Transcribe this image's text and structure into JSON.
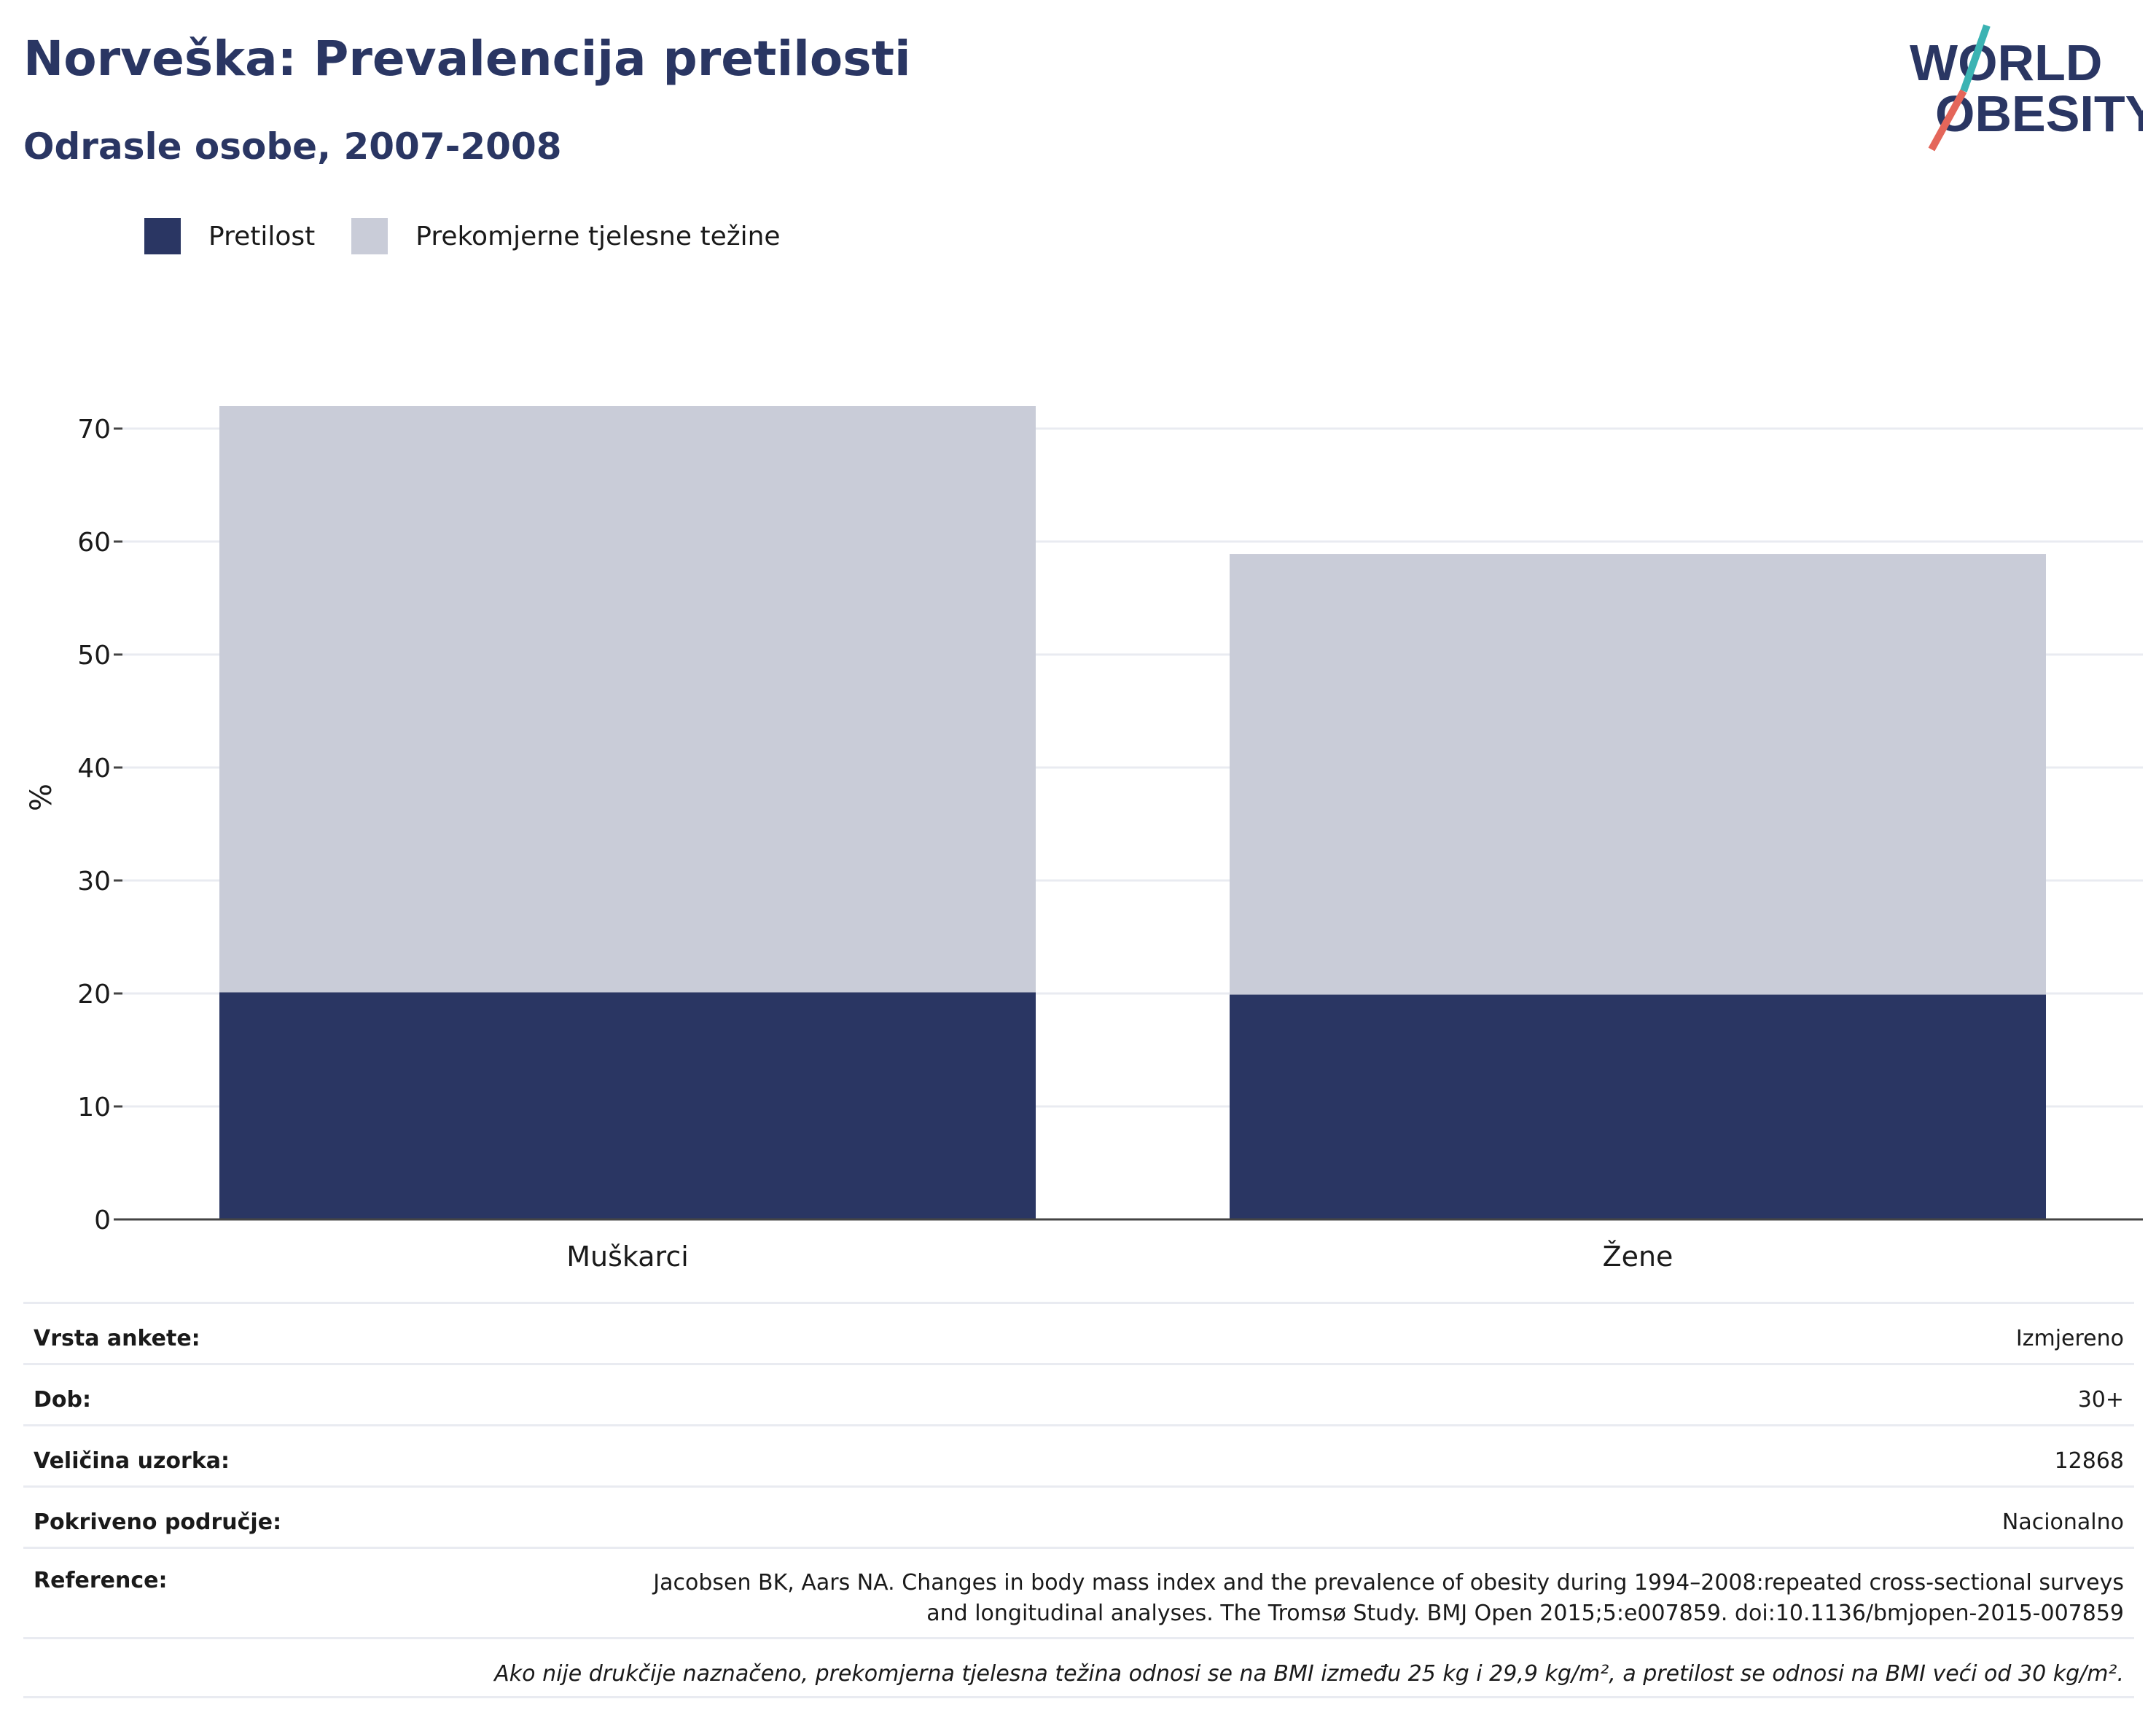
{
  "title": "Norveška: Prevalencija pretilosti",
  "subtitle": "Odrasle osobe, 2007-2008",
  "logo": {
    "line1": "WORLD",
    "line2": "OBESITY"
  },
  "legend": [
    {
      "label": "Pretilost",
      "color": "#2a3663"
    },
    {
      "label": "Prekomjerne tjelesne težine",
      "color": "#c9ccd8"
    }
  ],
  "chart_data": {
    "type": "bar",
    "stacked": true,
    "categories": [
      "Muškarci",
      "Žene"
    ],
    "series": [
      {
        "name": "Pretilost",
        "color": "#2a3663",
        "values": [
          20.1,
          19.9
        ]
      },
      {
        "name": "Prekomjerne tjelesne težine",
        "color": "#c9ccd8",
        "values": [
          51.9,
          39.0
        ]
      }
    ],
    "ylabel": "%",
    "ylim": [
      0,
      72
    ],
    "yticks": [
      0,
      10,
      20,
      30,
      40,
      50,
      60,
      70
    ],
    "grid": true,
    "legend_position": "top-left"
  },
  "info": {
    "survey_type": {
      "label": "Vrsta ankete:",
      "value": "Izmjereno"
    },
    "age": {
      "label": "Dob:",
      "value": "30+"
    },
    "sample_size": {
      "label": "Veličina uzorka:",
      "value": "12868"
    },
    "coverage": {
      "label": "Pokriveno područje:",
      "value": "Nacionalno"
    },
    "references": {
      "label": "Reference:",
      "value_line1": "Jacobsen BK, Aars NA. Changes in body mass index and the prevalence of obesity during 1994–2008:repeated cross-sectional surveys",
      "value_line2": "and longitudinal analyses. The Tromsø Study. BMJ Open 2015;5:e007859. doi:10.1136/bmjopen-2015-007859"
    },
    "note": "Ako nije drukčije naznačeno, prekomjerna tjelesna težina odnosi se na BMI između 25 kg i 29,9 kg/m², a pretilost se odnosi na BMI veći od 30 kg/m²."
  }
}
